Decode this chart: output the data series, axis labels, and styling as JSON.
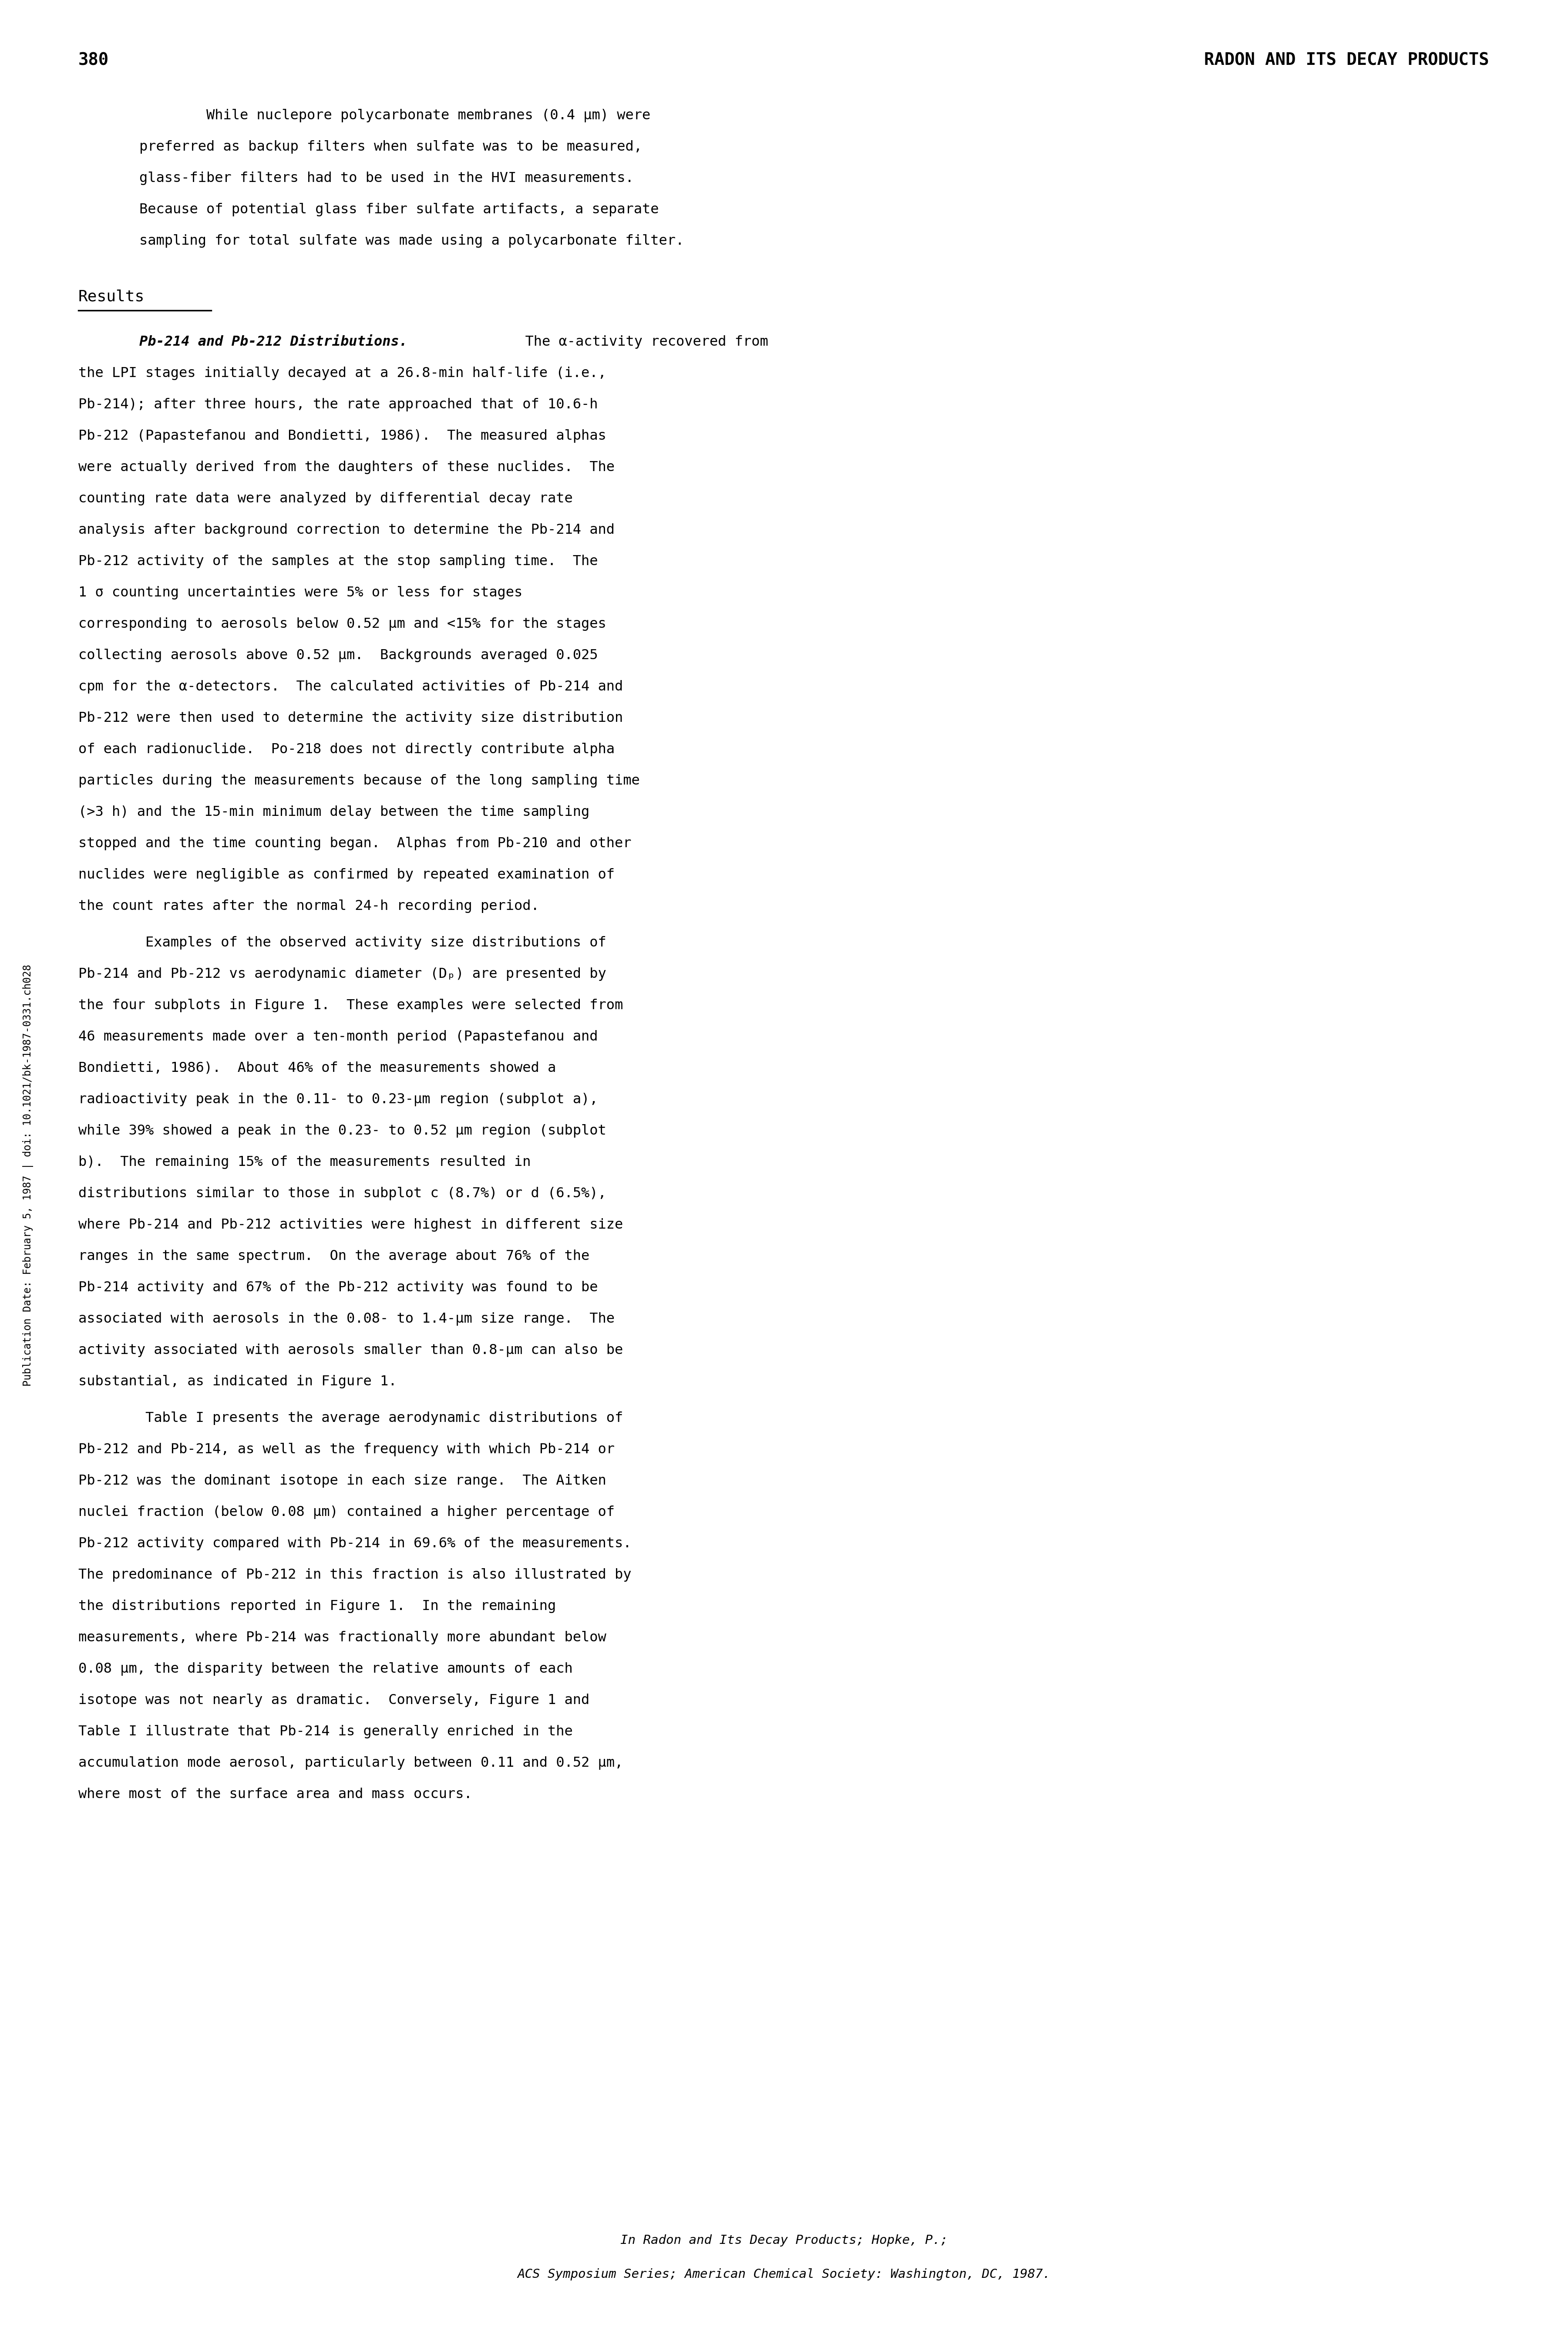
{
  "page_number": "380",
  "header_right": "RADON AND ITS DECAY PRODUCTS",
  "background_color": "#ffffff",
  "text_color": "#000000",
  "sidebar_text": "Publication Date: February 5, 1987 | doi: 10.1021/bk-1987-0331.ch028",
  "intro_paragraph_lines": [
    "        While nuclepore polycarbonate membranes (0.4 μm) were",
    "preferred as backup filters when sulfate was to be measured,",
    "glass-fiber filters had to be used in the HVI measurements.",
    "Because of potential glass fiber sulfate artifacts, a separate",
    "sampling for total sulfate was made using a polycarbonate filter."
  ],
  "results_heading": "Results",
  "para1_label": "Pb-214 and Pb-212 Distributions.",
  "para1_body_lines": [
    "  The α-activity recovered from",
    "the LPI stages initially decayed at a 26.8-min half-life (i.e.,",
    "Pb-214); after three hours, the rate approached that of 10.6-h",
    "Pb-212 (Papastefanou and Bondietti, 1986).  The measured alphas",
    "were actually derived from the daughters of these nuclides.  The",
    "counting rate data were analyzed by differential decay rate",
    "analysis after background correction to determine the Pb-214 and",
    "Pb-212 activity of the samples at the stop sampling time.  The",
    "1 σ counting uncertainties were 5% or less for stages",
    "corresponding to aerosols below 0.52 μm and <15% for the stages",
    "collecting aerosols above 0.52 μm.  Backgrounds averaged 0.025",
    "cpm for the α-detectors.  The calculated activities of Pb-214 and",
    "Pb-212 were then used to determine the activity size distribution",
    "of each radionuclide.  Po-218 does not directly contribute alpha",
    "particles during the measurements because of the long sampling time",
    "(>3 h) and the 15-min minimum delay between the time sampling",
    "stopped and the time counting began.  Alphas from Pb-210 and other",
    "nuclides were negligible as confirmed by repeated examination of",
    "the count rates after the normal 24-h recording period."
  ],
  "para2_lines": [
    "        Examples of the observed activity size distributions of",
    "Pb-214 and Pb-212 vs aerodynamic diameter (Dₚ) are presented by",
    "the four subplots in Figure 1.  These examples were selected from",
    "46 measurements made over a ten-month period (Papastefanou and",
    "Bondietti, 1986).  About 46% of the measurements showed a",
    "radioactivity peak in the 0.11- to 0.23-μm region (subplot a),",
    "while 39% showed a peak in the 0.23- to 0.52 μm region (subplot",
    "b).  The remaining 15% of the measurements resulted in",
    "distributions similar to those in subplot c (8.7%) or d (6.5%),",
    "where Pb-214 and Pb-212 activities were highest in different size",
    "ranges in the same spectrum.  On the average about 76% of the",
    "Pb-214 activity and 67% of the Pb-212 activity was found to be",
    "associated with aerosols in the 0.08- to 1.4-μm size range.  The",
    "activity associated with aerosols smaller than 0.8-μm can also be",
    "substantial, as indicated in Figure 1."
  ],
  "para3_lines": [
    "        Table I presents the average aerodynamic distributions of",
    "Pb-212 and Pb-214, as well as the frequency with which Pb-214 or",
    "Pb-212 was the dominant isotope in each size range.  The Aitken",
    "nuclei fraction (below 0.08 μm) contained a higher percentage of",
    "Pb-212 activity compared with Pb-214 in 69.6% of the measurements.",
    "The predominance of Pb-212 in this fraction is also illustrated by",
    "the distributions reported in Figure 1.  In the remaining",
    "measurements, where Pb-214 was fractionally more abundant below",
    "0.08 μm, the disparity between the relative amounts of each",
    "isotope was not nearly as dramatic.  Conversely, Figure 1 and",
    "Table I illustrate that Pb-214 is generally enriched in the",
    "accumulation mode aerosol, particularly between 0.11 and 0.52 μm,",
    "where most of the surface area and mass occurs."
  ],
  "footer_line1": "In Radon and Its Decay Products; Hopke, P.;",
  "footer_line2": "ACS Symposium Series; American Chemical Society: Washington, DC, 1987."
}
